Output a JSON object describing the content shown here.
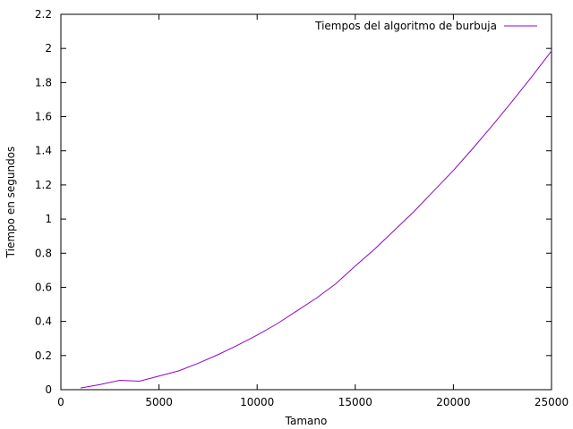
{
  "chart_data": {
    "type": "line",
    "title": "",
    "xlabel": "Tamano",
    "ylabel": "Tiempo en segundos",
    "xlim": [
      0,
      25000
    ],
    "ylim": [
      0,
      2.2
    ],
    "x_ticks": [
      0,
      5000,
      10000,
      15000,
      20000,
      25000
    ],
    "x_tick_labels": [
      "0",
      "5000",
      "10000",
      "15000",
      "20000",
      "25000"
    ],
    "y_ticks": [
      0,
      0.2,
      0.4,
      0.6,
      0.8,
      1,
      1.2,
      1.4,
      1.6,
      1.8,
      2,
      2.2
    ],
    "y_tick_labels": [
      "0",
      "0.2",
      "0.4",
      "0.6",
      "0.8",
      "1",
      "1.2",
      "1.4",
      "1.6",
      "1.8",
      "2",
      "2.2"
    ],
    "grid": false,
    "legend_position": "top-right",
    "series": [
      {
        "name": "Tiempos del algoritmo de burbuja",
        "color": "#9400d3",
        "x": [
          1000,
          2000,
          3000,
          4000,
          5000,
          6000,
          7000,
          8000,
          9000,
          10000,
          11000,
          12000,
          13000,
          14000,
          15000,
          16000,
          17000,
          18000,
          19000,
          20000,
          21000,
          22000,
          23000,
          24000,
          25000
        ],
        "y": [
          0.01,
          0.03,
          0.055,
          0.05,
          0.08,
          0.11,
          0.155,
          0.205,
          0.26,
          0.32,
          0.385,
          0.46,
          0.535,
          0.62,
          0.725,
          0.825,
          0.935,
          1.045,
          1.165,
          1.285,
          1.415,
          1.55,
          1.69,
          1.835,
          1.985
        ]
      }
    ]
  }
}
